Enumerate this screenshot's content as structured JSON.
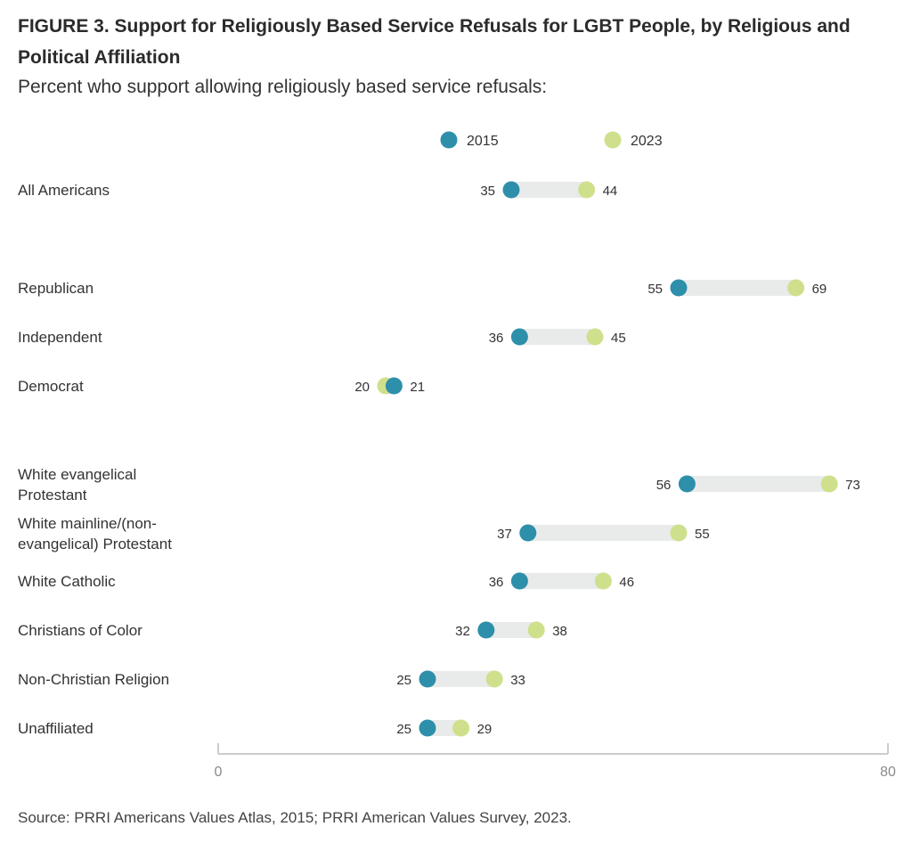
{
  "title": "FIGURE 3.  Support for Religiously Based Service Refusals for LGBT People, by Religious and Political Affiliation",
  "subtitle": "Percent who support allowing religiously based service refusals:",
  "source": "Source: PRRI Americans Values Atlas, 2015; PRRI American Values Survey, 2023.",
  "colors": {
    "y2015": "#2e8fab",
    "y2023": "#cfe08c",
    "track": "#e9eaea",
    "axis": "#cccccc"
  },
  "chart_data": {
    "type": "dumbbell",
    "xlim": [
      0,
      80
    ],
    "x_ticks": [
      "0",
      "80"
    ],
    "series": [
      {
        "name": "2015",
        "color": "#2e8fab"
      },
      {
        "name": "2023",
        "color": "#cfe08c"
      }
    ],
    "rows": [
      {
        "label": [
          "All Americans"
        ],
        "v2015": 35,
        "v2023": 44
      },
      {
        "label": [
          "Republican"
        ],
        "v2015": 55,
        "v2023": 69
      },
      {
        "label": [
          "Independent"
        ],
        "v2015": 36,
        "v2023": 45
      },
      {
        "label": [
          "Democrat"
        ],
        "v2015": 21,
        "v2023": 20
      },
      {
        "label": [
          "White evangelical",
          "Protestant"
        ],
        "v2015": 56,
        "v2023": 73
      },
      {
        "label": [
          "White mainline/(non-",
          "evangelical) Protestant"
        ],
        "v2015": 37,
        "v2023": 55
      },
      {
        "label": [
          "White Catholic"
        ],
        "v2015": 36,
        "v2023": 46
      },
      {
        "label": [
          "Christians of Color"
        ],
        "v2015": 32,
        "v2023": 38
      },
      {
        "label": [
          "Non-Christian Religion"
        ],
        "v2015": 25,
        "v2023": 33
      },
      {
        "label": [
          "Unaffiliated"
        ],
        "v2015": 25,
        "v2023": 29
      }
    ]
  }
}
